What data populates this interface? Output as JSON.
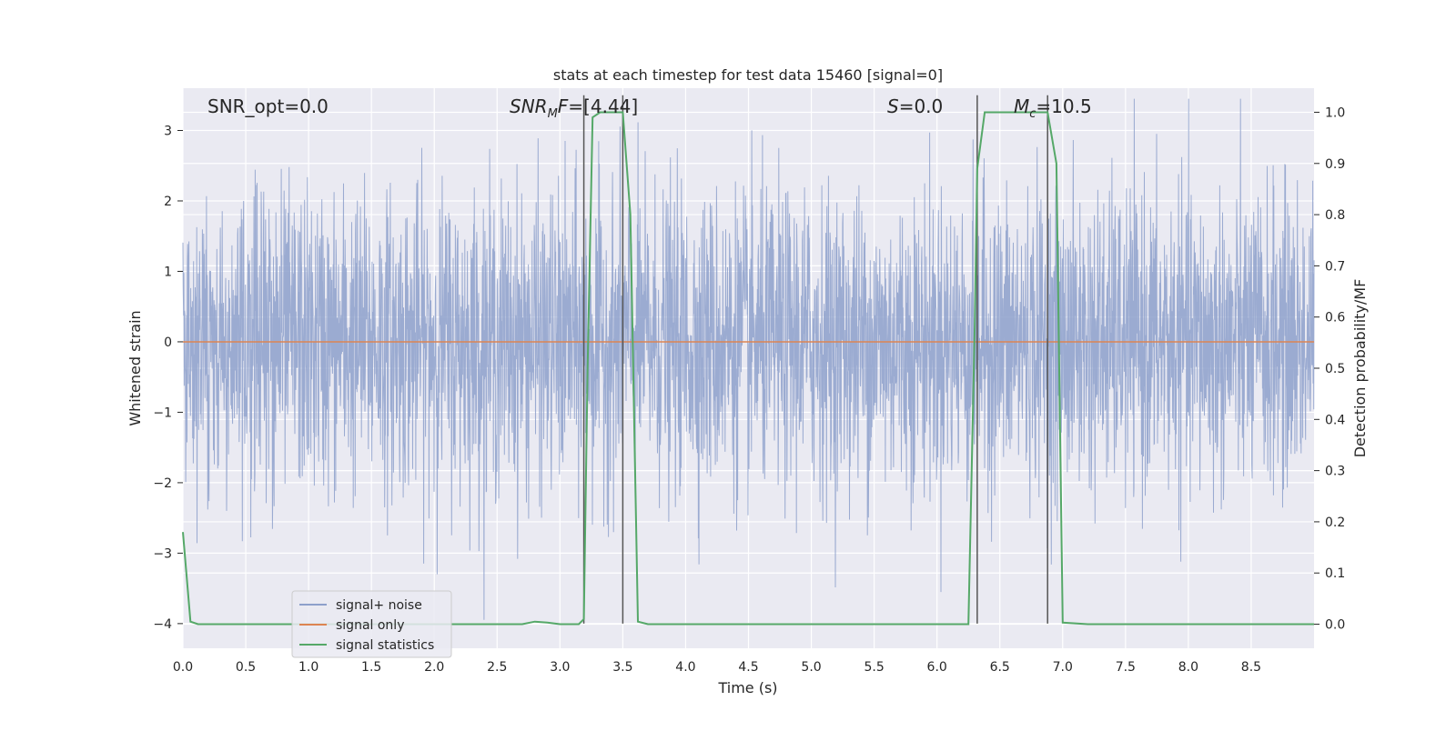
{
  "chart_data": {
    "type": "line",
    "title": "stats at each timestep for test data 15460 [signal=0]",
    "xlabel": "Time (s)",
    "ylabel": "Whitened strain",
    "ylabel_right": "Detection probability/MF",
    "xlim": [
      0,
      9.0
    ],
    "ylim": [
      -4.35,
      3.6
    ],
    "ylim_right": [
      -0.047,
      1.047
    ],
    "x_ticks": [
      0.0,
      0.5,
      1.0,
      1.5,
      2.0,
      2.5,
      3.0,
      3.5,
      4.0,
      4.5,
      5.0,
      5.5,
      6.0,
      6.5,
      7.0,
      7.5,
      8.0,
      8.5
    ],
    "x_tick_labels": [
      "0.0",
      "0.5",
      "1.0",
      "1.5",
      "2.0",
      "2.5",
      "3.0",
      "3.5",
      "4.0",
      "4.5",
      "5.0",
      "5.5",
      "6.0",
      "6.5",
      "7.0",
      "7.5",
      "8.0",
      "8.5"
    ],
    "y_ticks": [
      3,
      2,
      1,
      0,
      -1,
      -2,
      -3,
      -4
    ],
    "y_tick_labels": [
      "3",
      "2",
      "1",
      "0",
      "−1",
      "−2",
      "−3",
      "−4"
    ],
    "y_right_ticks": [
      1.0,
      0.9,
      0.8,
      0.7,
      0.6,
      0.5,
      0.4,
      0.3,
      0.2,
      0.1,
      0.0
    ],
    "y_right_tick_labels": [
      "1.0",
      "0.9",
      "0.8",
      "0.7",
      "0.6",
      "0.5",
      "0.4",
      "0.3",
      "0.2",
      "0.1",
      "0.0"
    ],
    "grid": true,
    "legend_position": "lower-left",
    "series": [
      {
        "name": "signal+ noise",
        "color": "#8da0cb",
        "kind": "noisy-strain",
        "std": 1.0,
        "duration": 9.0
      },
      {
        "name": "signal only",
        "color": "#dd8452",
        "x": [
          0,
          9.0
        ],
        "y": [
          0,
          0
        ]
      },
      {
        "name": "signal statistics",
        "color": "#55a868",
        "axis": "right",
        "x": [
          0.0,
          0.06,
          0.12,
          0.3,
          0.6,
          1.0,
          1.5,
          2.0,
          2.5,
          2.7,
          2.8,
          2.9,
          3.0,
          3.1,
          3.15,
          3.19,
          3.22,
          3.26,
          3.32,
          3.45,
          3.5,
          3.56,
          3.62,
          3.7,
          4.0,
          5.0,
          6.0,
          6.25,
          6.3,
          6.32,
          6.38,
          6.6,
          6.88,
          6.95,
          7.0,
          7.2,
          8.0,
          9.0
        ],
        "y": [
          0.18,
          0.005,
          0.0,
          0.0,
          0.0,
          0.0,
          0.0,
          0.0,
          0.0,
          0.0,
          0.005,
          0.003,
          0.0,
          0.0,
          0.0,
          0.01,
          0.5,
          0.99,
          1.0,
          1.0,
          1.0,
          0.8,
          0.005,
          0.0,
          0.0,
          0.0,
          0.0,
          0.0,
          0.58,
          0.89,
          1.0,
          1.0,
          1.0,
          0.9,
          0.003,
          0.0,
          0.0,
          0.0
        ]
      }
    ],
    "vertical_lines": [
      3.19,
      3.5,
      6.32,
      6.88
    ],
    "annotations": [
      {
        "label": "SNR_opt=0.0",
        "x": 0.19
      },
      {
        "label": "SNR_MF=[4.44]",
        "x": 2.6
      },
      {
        "label": "S=0.0",
        "x": 5.6
      },
      {
        "label": "M_c=10.5",
        "x": 6.6
      }
    ]
  }
}
